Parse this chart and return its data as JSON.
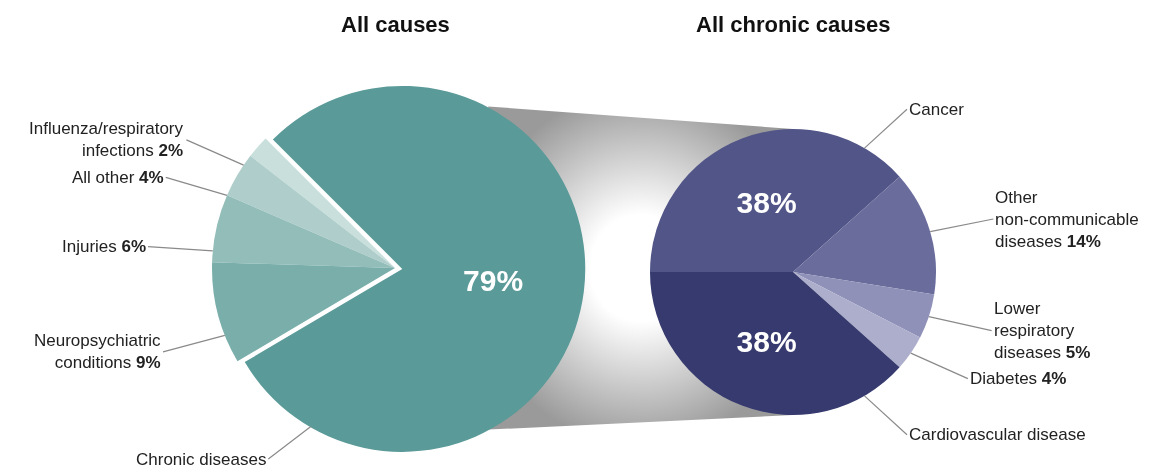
{
  "chart_data": [
    {
      "type": "pie",
      "title": "All causes",
      "categories": [
        "Influenza/respiratory infections",
        "All other",
        "Injuries",
        "Neuropsychiatric conditions",
        "Chronic diseases"
      ],
      "values": [
        2,
        4,
        6,
        9,
        79
      ],
      "value_labels": [
        "2%",
        "4%",
        "6%",
        "9%",
        "79%"
      ],
      "colors": [
        "#c8dfdc",
        "#afcecb",
        "#93bdb9",
        "#7aaeaa",
        "#5a9a98"
      ]
    },
    {
      "type": "pie",
      "title": "All chronic causes",
      "categories": [
        "Cancer",
        "Other non-communicable diseases",
        "Lower respiratory diseases",
        "Diabetes",
        "Cardiovascular disease"
      ],
      "values": [
        38,
        14,
        5,
        4,
        38
      ],
      "value_labels": [
        "38%",
        "14%",
        "5%",
        "4%",
        "38%"
      ],
      "colors": [
        "#525587",
        "#6a6c9c",
        "#8f91b8",
        "#adaecc",
        "#363a6e"
      ]
    }
  ]
}
